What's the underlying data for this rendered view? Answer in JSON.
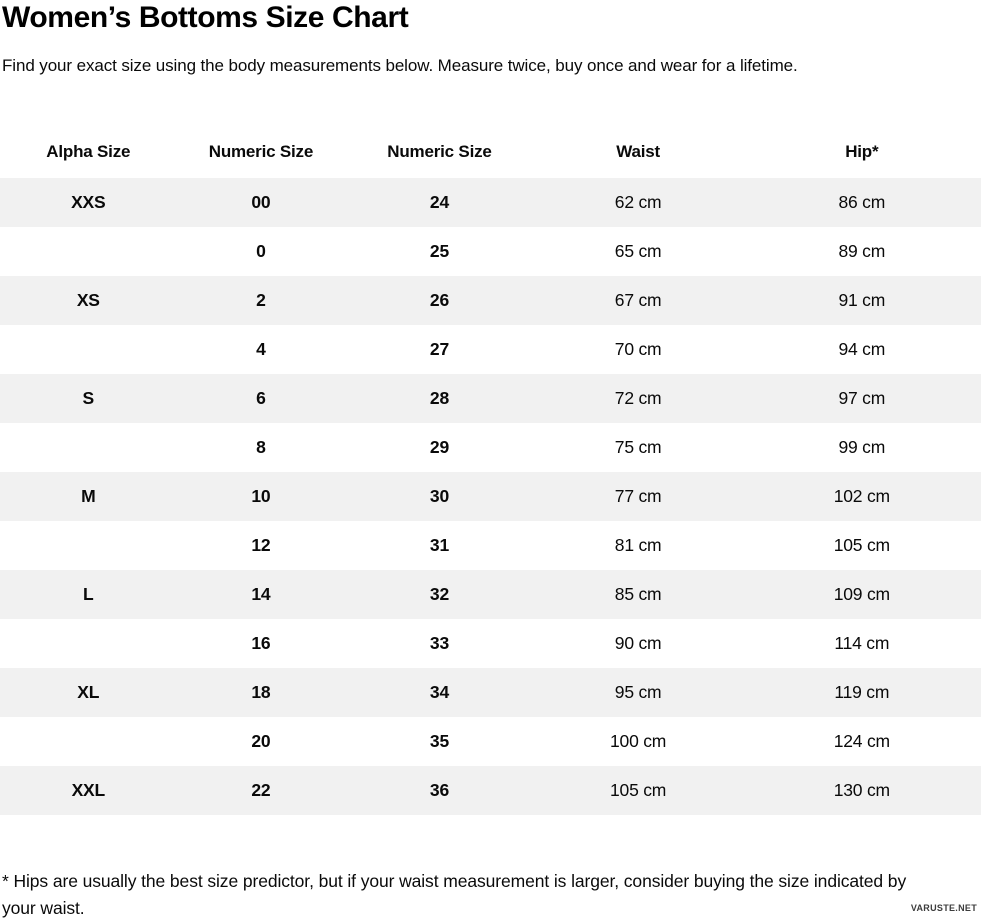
{
  "page": {
    "title": "Women’s Bottoms Size Chart",
    "subtitle": "Find your exact size using the body measurements below. Measure twice, buy once and wear for a lifetime.",
    "footnote": "* Hips are usually the best size predictor, but if your waist measurement is larger, consider buying the size indicated by your waist.",
    "watermark": "VARUSTE.NET"
  },
  "colors": {
    "background": "#ffffff",
    "stripe": "#f1f1f1",
    "text": "#0a0a0a"
  },
  "table": {
    "headers": [
      "Alpha Size",
      "Numeric Size",
      "Numeric Size",
      "Waist",
      "Hip*"
    ],
    "rows": [
      {
        "alpha": "XXS",
        "numeric_us": "00",
        "numeric_inch": "24",
        "waist": "62 cm",
        "hip": "86 cm"
      },
      {
        "alpha": "",
        "numeric_us": "0",
        "numeric_inch": "25",
        "waist": "65 cm",
        "hip": "89 cm"
      },
      {
        "alpha": "XS",
        "numeric_us": "2",
        "numeric_inch": "26",
        "waist": "67 cm",
        "hip": "91 cm"
      },
      {
        "alpha": "",
        "numeric_us": "4",
        "numeric_inch": "27",
        "waist": "70 cm",
        "hip": "94 cm"
      },
      {
        "alpha": "S",
        "numeric_us": "6",
        "numeric_inch": "28",
        "waist": "72 cm",
        "hip": "97 cm"
      },
      {
        "alpha": "",
        "numeric_us": "8",
        "numeric_inch": "29",
        "waist": "75 cm",
        "hip": "99 cm"
      },
      {
        "alpha": "M",
        "numeric_us": "10",
        "numeric_inch": "30",
        "waist": "77 cm",
        "hip": "102 cm"
      },
      {
        "alpha": "",
        "numeric_us": "12",
        "numeric_inch": "31",
        "waist": "81 cm",
        "hip": "105 cm"
      },
      {
        "alpha": "L",
        "numeric_us": "14",
        "numeric_inch": "32",
        "waist": "85 cm",
        "hip": "109 cm"
      },
      {
        "alpha": "",
        "numeric_us": "16",
        "numeric_inch": "33",
        "waist": "90 cm",
        "hip": "114 cm"
      },
      {
        "alpha": "XL",
        "numeric_us": "18",
        "numeric_inch": "34",
        "waist": "95 cm",
        "hip": "119 cm"
      },
      {
        "alpha": "",
        "numeric_us": "20",
        "numeric_inch": "35",
        "waist": "100 cm",
        "hip": "124 cm"
      },
      {
        "alpha": "XXL",
        "numeric_us": "22",
        "numeric_inch": "36",
        "waist": "105 cm",
        "hip": "130 cm"
      }
    ]
  }
}
